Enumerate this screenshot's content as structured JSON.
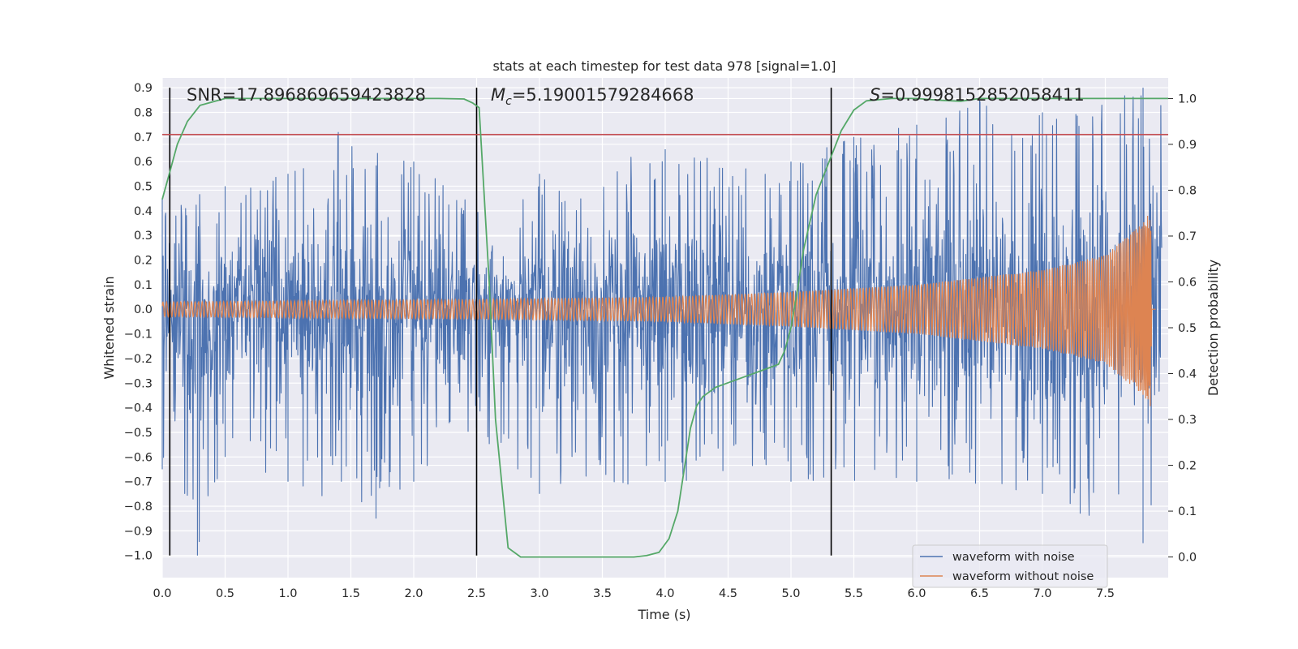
{
  "chart_data": {
    "type": "line",
    "title": "stats at each timestep for test data 978 [signal=1.0]",
    "xlabel": "Time (s)",
    "ylabel": "Whitened strain",
    "y2label": "Detection probability",
    "xlim": [
      0.0,
      8.0
    ],
    "ylim": [
      -1.09,
      0.94
    ],
    "y2lim": [
      -0.045,
      1.045
    ],
    "xticks": [
      "0.0",
      "0.5",
      "1.0",
      "1.5",
      "2.0",
      "2.5",
      "3.0",
      "3.5",
      "4.0",
      "4.5",
      "5.0",
      "5.5",
      "6.0",
      "6.5",
      "7.0",
      "7.5"
    ],
    "yticks": [
      "0.9",
      "0.8",
      "0.7",
      "0.6",
      "0.5",
      "0.4",
      "0.3",
      "0.2",
      "0.1",
      "0.0",
      "−0.1",
      "−0.2",
      "−0.3",
      "−0.4",
      "−0.5",
      "−0.6",
      "−0.7",
      "−0.8",
      "−0.9",
      "−1.0"
    ],
    "y2ticks": [
      "1.0",
      "0.9",
      "0.8",
      "0.7",
      "0.6",
      "0.5",
      "0.4",
      "0.3",
      "0.2",
      "0.1",
      "0.0"
    ],
    "grid": true,
    "legend_position": "bottom-right",
    "annotations": {
      "snr": "SNR=17.896869659423828",
      "mc_symbol": "M",
      "mc_sub": "c",
      "mc_value": "=5.19001579284668",
      "s_symbol": "S",
      "s_value": "=0.9998152852058411"
    },
    "threshold": {
      "value": 0.71,
      "color": "#c44e52"
    },
    "vertical_lines": [
      0.06,
      2.5,
      5.32
    ],
    "series": [
      {
        "name": "waveform with noise",
        "color": "#4c72b0",
        "description_points": {
          "t_end": 7.95,
          "upper_envelope": [
            [
              0.0,
              0.45
            ],
            [
              0.5,
              0.5
            ],
            [
              1.0,
              0.55
            ],
            [
              1.4,
              0.72
            ],
            [
              2.0,
              0.6
            ],
            [
              2.5,
              0.45
            ],
            [
              3.0,
              0.55
            ],
            [
              4.0,
              0.65
            ],
            [
              5.0,
              0.6
            ],
            [
              5.5,
              0.7
            ],
            [
              6.0,
              0.75
            ],
            [
              6.5,
              0.85
            ],
            [
              7.0,
              0.8
            ],
            [
              7.8,
              0.9
            ]
          ],
          "lower_envelope": [
            [
              0.0,
              -0.65
            ],
            [
              0.28,
              -1.0
            ],
            [
              0.5,
              -0.6
            ],
            [
              1.0,
              -0.7
            ],
            [
              1.7,
              -0.85
            ],
            [
              2.0,
              -0.7
            ],
            [
              2.5,
              -0.5
            ],
            [
              3.0,
              -0.75
            ],
            [
              4.0,
              -0.7
            ],
            [
              5.0,
              -0.7
            ],
            [
              6.0,
              -0.7
            ],
            [
              7.0,
              -0.75
            ],
            [
              7.3,
              -0.83
            ],
            [
              7.8,
              -0.95
            ]
          ]
        }
      },
      {
        "name": "waveform without noise",
        "color": "#dd8452",
        "amplitude": [
          [
            0.0,
            0.03
          ],
          [
            2.5,
            0.04
          ],
          [
            4.0,
            0.05
          ],
          [
            5.0,
            0.07
          ],
          [
            6.0,
            0.1
          ],
          [
            7.0,
            0.16
          ],
          [
            7.5,
            0.22
          ],
          [
            7.8,
            0.35
          ],
          [
            7.86,
            0.4
          ],
          [
            7.87,
            0.0
          ],
          [
            8.0,
            0.0
          ]
        ]
      },
      {
        "name": "detection probability",
        "color": "#55a868",
        "axis": "right",
        "t": [
          0.0,
          0.05,
          0.1,
          0.12,
          0.2,
          0.3,
          0.5,
          1.0,
          1.5,
          2.0,
          2.2,
          2.4,
          2.47,
          2.52,
          2.6,
          2.65,
          2.75,
          2.85,
          2.95,
          3.0,
          3.5,
          3.75,
          3.85,
          3.95,
          4.03,
          4.1,
          4.15,
          4.2,
          4.25,
          4.3,
          4.4,
          4.5,
          4.6,
          4.8,
          4.9,
          4.95,
          5.0,
          5.05,
          5.1,
          5.2,
          5.3,
          5.4,
          5.5,
          5.6,
          5.8,
          6.0,
          6.1,
          6.2,
          6.35,
          6.5,
          6.7,
          7.0,
          7.5,
          8.0
        ],
        "p": [
          0.78,
          0.83,
          0.88,
          0.9,
          0.95,
          0.985,
          1.0,
          1.0,
          1.0,
          1.0,
          1.0,
          0.999,
          0.99,
          0.98,
          0.6,
          0.3,
          0.02,
          0.0,
          0.0,
          0.0,
          0.0,
          0.0,
          0.003,
          0.01,
          0.04,
          0.1,
          0.19,
          0.28,
          0.33,
          0.35,
          0.37,
          0.38,
          0.39,
          0.41,
          0.42,
          0.45,
          0.5,
          0.58,
          0.67,
          0.79,
          0.86,
          0.93,
          0.975,
          0.995,
          1.0,
          1.0,
          0.998,
          0.996,
          0.994,
          1.0,
          1.0,
          1.0,
          1.0,
          1.0
        ]
      }
    ]
  }
}
